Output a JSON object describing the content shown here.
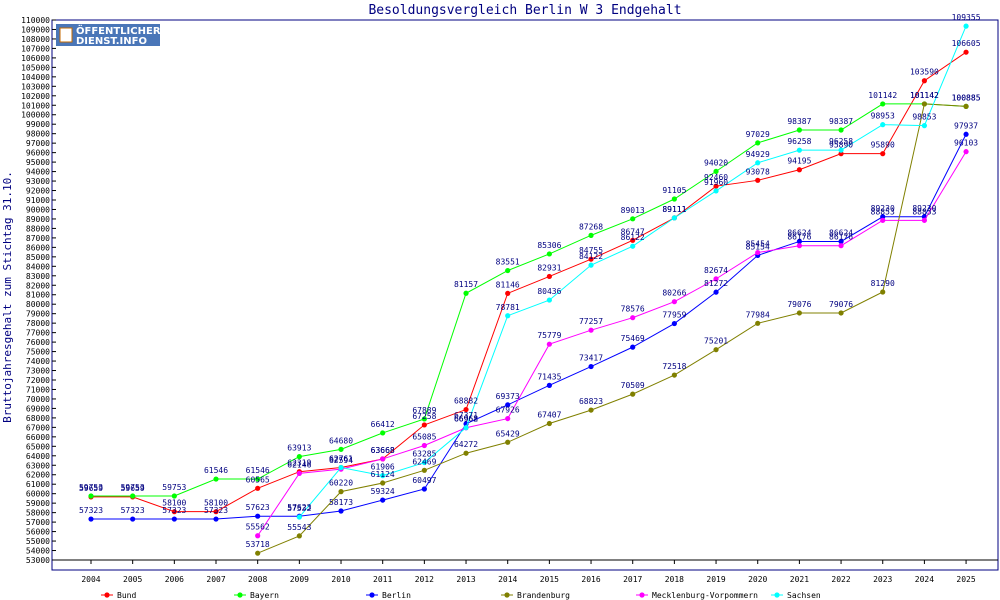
{
  "chart_data": {
    "type": "line",
    "title": "Besoldungsvergleich Berlin W 3 Endgehalt",
    "ylabel": "Bruttojahresgehalt zum Stichtag 31.10.",
    "ylim": [
      53000,
      110000
    ],
    "ytick_step": 1000,
    "categories": [
      "2004",
      "2005",
      "2006",
      "2007",
      "2008",
      "2009",
      "2010",
      "2011",
      "2012",
      "2013",
      "2014",
      "2015",
      "2016",
      "2017",
      "2018",
      "2019",
      "2020",
      "2021",
      "2022",
      "2023",
      "2024",
      "2025"
    ],
    "series": [
      {
        "name": "Bund",
        "color": "#ff0000",
        "values": [
          59659,
          59659,
          58100,
          58100,
          60565,
          62319,
          62761,
          63668,
          67258,
          68882,
          81146,
          82931,
          84755,
          86747,
          89111,
          92460,
          93078,
          94195,
          95890,
          95890,
          103590,
          106605
        ]
      },
      {
        "name": "Bayern",
        "color": "#00ff00",
        "values": [
          59753,
          59753,
          59753,
          61546,
          61546,
          63913,
          64680,
          66412,
          67889,
          81157,
          83551,
          85306,
          87268,
          89013,
          91105,
          94020,
          97029,
          98387,
          98387,
          101142,
          101142,
          100885
        ]
      },
      {
        "name": "Berlin",
        "color": "#0000ff",
        "values": [
          57323,
          57323,
          57323,
          57323,
          57623,
          57623,
          58173,
          59324,
          60497,
          67371,
          69373,
          71435,
          73417,
          75469,
          77959,
          81272,
          85154,
          86624,
          86624,
          89230,
          89230,
          97937
        ]
      },
      {
        "name": "Brandenburg",
        "color": "#808000",
        "values": [
          null,
          null,
          null,
          null,
          53718,
          55543,
          60220,
          61124,
          62469,
          64272,
          65429,
          67407,
          68823,
          70509,
          72518,
          75201,
          77984,
          79076,
          79076,
          81290,
          101142,
          100885
        ]
      },
      {
        "name": "Mecklenburg-Vorpommern",
        "color": "#ff00ff",
        "values": [
          null,
          null,
          null,
          null,
          55562,
          62146,
          62594,
          63668,
          65085,
          66962,
          67926,
          75779,
          77257,
          78576,
          80266,
          82674,
          85454,
          86176,
          86176,
          88853,
          88853,
          96103
        ]
      },
      {
        "name": "Sachsen",
        "color": "#00ffff",
        "values": [
          null,
          null,
          null,
          null,
          null,
          57532,
          62761,
          61906,
          63285,
          66968,
          78781,
          80436,
          84122,
          86122,
          89111,
          91960,
          94929,
          96258,
          96258,
          98953,
          98853,
          109355
        ]
      }
    ],
    "grid": false,
    "legend_position": "bottom"
  },
  "logo": {
    "line1": "ÖFFENTLICHER",
    "line2": "DIENST.INFO"
  },
  "style": {
    "frame_color": "#000080",
    "axis_color": "#000000",
    "background": "#ffffff"
  }
}
